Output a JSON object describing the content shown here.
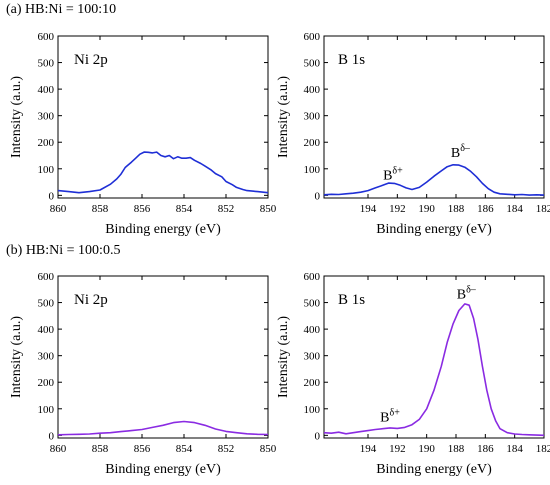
{
  "sections": [
    {
      "label": "(a) HB:Ni = 100:10"
    },
    {
      "label": "(b) HB:Ni = 100:0.5"
    }
  ],
  "chart_data": [
    {
      "type": "line",
      "panel_title": "Ni 2p",
      "xlabel": "Binding energy (eV)",
      "ylabel": "Intensity (a.u.)",
      "xlim": [
        860,
        850
      ],
      "ylim": [
        -10,
        600
      ],
      "x_ticks": [
        860,
        858,
        856,
        854,
        852,
        850
      ],
      "y_ticks": [
        0,
        100,
        200,
        300,
        400,
        500,
        600
      ],
      "color": "#1f2fd6",
      "annotations": [],
      "series": [
        {
          "x": [
            860,
            859.5,
            859,
            858.5,
            858,
            857.5,
            857.2,
            857,
            856.8,
            856.5,
            856.3,
            856.1,
            855.9,
            855.7,
            855.5,
            855.3,
            855.1,
            854.9,
            854.7,
            854.5,
            854.3,
            854.1,
            853.9,
            853.7,
            853.5,
            853.2,
            853,
            852.7,
            852.5,
            852.2,
            852,
            851.7,
            851.5,
            851.2,
            851,
            850.5,
            850
          ],
          "y": [
            18,
            14,
            10,
            14,
            20,
            42,
            62,
            80,
            105,
            125,
            140,
            155,
            163,
            162,
            160,
            163,
            150,
            145,
            150,
            138,
            145,
            140,
            140,
            142,
            132,
            120,
            110,
            95,
            82,
            70,
            52,
            40,
            30,
            22,
            18,
            14,
            10
          ]
        }
      ]
    },
    {
      "type": "line",
      "panel_title": "B 1s",
      "xlabel": "Binding energy (eV)",
      "ylabel": "Intensity (a.u.)",
      "xlim": [
        197,
        182
      ],
      "ylim": [
        -10,
        600
      ],
      "x_ticks": [
        194,
        192,
        190,
        188,
        186,
        184,
        182
      ],
      "y_ticks": [
        0,
        100,
        200,
        300,
        400,
        500,
        600
      ],
      "color": "#1f2fd6",
      "annotations": [
        {
          "base": "B",
          "sup": "δ+",
          "x": 192.3,
          "y": 60
        },
        {
          "base": "B",
          "sup": "δ–",
          "x": 187.7,
          "y": 145
        }
      ],
      "series": [
        {
          "x": [
            197,
            196.5,
            196,
            195.5,
            195,
            194.5,
            194,
            193.5,
            193,
            192.6,
            192.2,
            191.8,
            191.4,
            191,
            190.5,
            190,
            189.5,
            189,
            188.6,
            188.2,
            187.8,
            187.4,
            187,
            186.6,
            186.2,
            185.8,
            185.4,
            185,
            184.5,
            184,
            183.5,
            183,
            182.5,
            182
          ],
          "y": [
            2,
            4,
            3,
            6,
            8,
            12,
            18,
            28,
            38,
            46,
            45,
            38,
            28,
            22,
            30,
            50,
            72,
            92,
            108,
            115,
            114,
            106,
            90,
            70,
            45,
            25,
            12,
            6,
            4,
            2,
            3,
            1,
            2,
            1
          ]
        }
      ]
    },
    {
      "type": "line",
      "panel_title": "Ni 2p",
      "xlabel": "Binding energy (eV)",
      "ylabel": "Intensity (a.u.)",
      "xlim": [
        860,
        850
      ],
      "ylim": [
        -10,
        600
      ],
      "x_ticks": [
        860,
        858,
        856,
        854,
        852,
        850
      ],
      "y_ticks": [
        0,
        100,
        200,
        300,
        400,
        500,
        600
      ],
      "color": "#8a2be2",
      "annotations": [],
      "series": [
        {
          "x": [
            860,
            859.5,
            859,
            858.5,
            858,
            857.5,
            857,
            856.5,
            856,
            855.5,
            855,
            854.5,
            854,
            853.5,
            853,
            852.5,
            852,
            851.5,
            851,
            850.5,
            850
          ],
          "y": [
            2,
            3,
            4,
            5,
            8,
            10,
            14,
            18,
            22,
            30,
            38,
            48,
            52,
            48,
            38,
            24,
            15,
            10,
            6,
            4,
            3
          ]
        }
      ]
    },
    {
      "type": "line",
      "panel_title": "B 1s",
      "xlabel": "Binding energy (eV)",
      "ylabel": "Intensity (a.u.)",
      "xlim": [
        197,
        182
      ],
      "ylim": [
        -10,
        600
      ],
      "x_ticks": [
        194,
        192,
        190,
        188,
        186,
        184,
        182
      ],
      "y_ticks": [
        0,
        100,
        200,
        300,
        400,
        500,
        600
      ],
      "color": "#8a2be2",
      "annotations": [
        {
          "base": "B",
          "sup": "δ+",
          "x": 192.5,
          "y": 52
        },
        {
          "base": "B",
          "sup": "δ–",
          "x": 187.3,
          "y": 515
        }
      ],
      "series": [
        {
          "x": [
            197,
            196.5,
            196,
            195.5,
            195,
            194.5,
            194,
            193.5,
            193,
            192.5,
            192,
            191.5,
            191,
            190.5,
            190,
            189.5,
            189,
            188.6,
            188.2,
            187.8,
            187.4,
            187.1,
            186.8,
            186.5,
            186.2,
            185.9,
            185.6,
            185.3,
            185,
            184.5,
            184,
            183.5,
            183,
            182.5,
            182
          ],
          "y": [
            10,
            8,
            12,
            6,
            10,
            14,
            18,
            22,
            25,
            28,
            26,
            30,
            40,
            60,
            100,
            170,
            260,
            350,
            420,
            470,
            495,
            490,
            440,
            360,
            260,
            170,
            100,
            55,
            25,
            10,
            5,
            3,
            2,
            1,
            0
          ]
        }
      ]
    }
  ]
}
